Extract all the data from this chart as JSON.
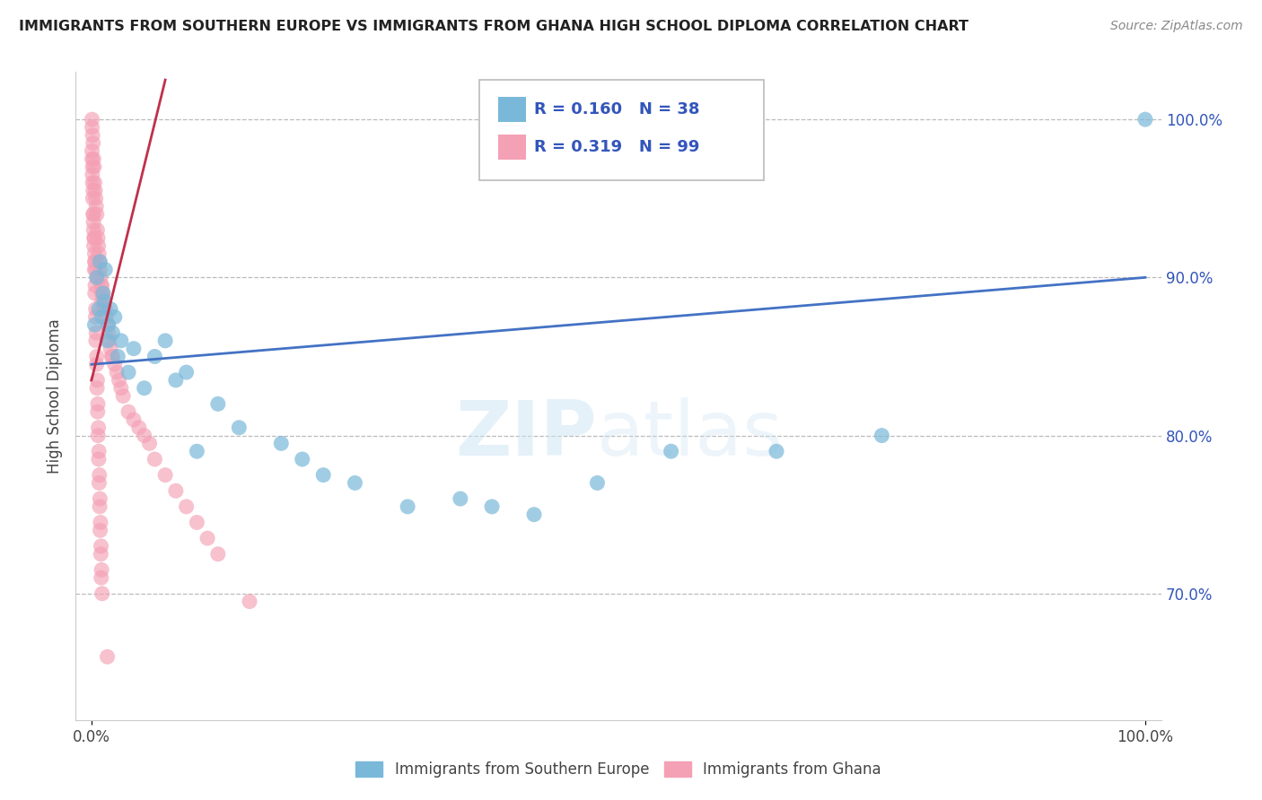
{
  "title": "IMMIGRANTS FROM SOUTHERN EUROPE VS IMMIGRANTS FROM GHANA HIGH SCHOOL DIPLOMA CORRELATION CHART",
  "source": "Source: ZipAtlas.com",
  "ylabel": "High School Diploma",
  "legend_blue_r": "R = 0.160",
  "legend_blue_n": "N = 38",
  "legend_pink_r": "R = 0.319",
  "legend_pink_n": "N = 99",
  "legend_label_blue": "Immigrants from Southern Europe",
  "legend_label_pink": "Immigrants from Ghana",
  "watermark_zip": "ZIP",
  "watermark_atlas": "atlas",
  "blue_color": "#7ab8d9",
  "pink_color": "#f4a0b5",
  "blue_line_color": "#4472c4",
  "pink_line_color": "#c0304a",
  "title_color": "#222222",
  "legend_text_color": "#3355bb",
  "axis_color": "#444444",
  "background_color": "#ffffff",
  "grid_color": "#bbbbbb",
  "blue_scatter_x": [
    0.3,
    0.5,
    0.7,
    0.8,
    1.0,
    1.1,
    1.2,
    1.3,
    1.5,
    1.6,
    1.8,
    2.0,
    2.2,
    2.5,
    2.8,
    3.5,
    4.0,
    5.0,
    6.0,
    7.0,
    8.0,
    9.0,
    10.0,
    12.0,
    14.0,
    18.0,
    20.0,
    22.0,
    25.0,
    30.0,
    35.0,
    38.0,
    42.0,
    48.0,
    55.0,
    65.0,
    75.0,
    100.0
  ],
  "blue_scatter_y": [
    87.0,
    90.0,
    88.0,
    91.0,
    87.5,
    89.0,
    88.5,
    90.5,
    86.0,
    87.0,
    88.0,
    86.5,
    87.5,
    85.0,
    86.0,
    84.0,
    85.5,
    83.0,
    85.0,
    86.0,
    83.5,
    84.0,
    79.0,
    82.0,
    80.5,
    79.5,
    78.5,
    77.5,
    77.0,
    75.5,
    76.0,
    75.5,
    75.0,
    77.0,
    79.0,
    79.0,
    80.0,
    100.0
  ],
  "blue_line_x0": 0.0,
  "blue_line_x1": 100.0,
  "blue_line_y0": 84.5,
  "blue_line_y1": 90.0,
  "pink_line_x0": 0.0,
  "pink_line_x1": 7.0,
  "pink_line_y0": 83.5,
  "pink_line_y1": 102.5,
  "pink_scatter_x": [
    0.05,
    0.05,
    0.1,
    0.1,
    0.15,
    0.15,
    0.2,
    0.2,
    0.25,
    0.25,
    0.3,
    0.3,
    0.35,
    0.35,
    0.4,
    0.4,
    0.45,
    0.5,
    0.5,
    0.55,
    0.6,
    0.65,
    0.7,
    0.75,
    0.8,
    0.85,
    0.9,
    0.95,
    1.0,
    1.0,
    1.1,
    1.1,
    1.2,
    1.3,
    1.4,
    1.5,
    1.6,
    1.7,
    1.8,
    1.9,
    2.0,
    2.2,
    2.4,
    2.6,
    2.8,
    3.0,
    3.5,
    4.0,
    4.5,
    5.0,
    5.5,
    6.0,
    7.0,
    8.0,
    9.0,
    10.0,
    11.0,
    12.0,
    15.0,
    0.05,
    0.08,
    0.12,
    0.18,
    0.22,
    0.28,
    0.32,
    0.38,
    0.42,
    0.48,
    0.52,
    0.58,
    0.62,
    0.68,
    0.72,
    0.78,
    0.82,
    0.88,
    0.92,
    0.05,
    0.1,
    0.15,
    0.2,
    0.25,
    0.3,
    0.35,
    0.4,
    0.45,
    0.5,
    0.55,
    0.6,
    0.65,
    0.7,
    0.75,
    0.8,
    0.85,
    0.9,
    0.95,
    1.0,
    1.5
  ],
  "pink_scatter_y": [
    100.0,
    97.5,
    99.0,
    96.0,
    98.5,
    94.0,
    97.5,
    93.0,
    97.0,
    92.5,
    96.0,
    91.5,
    95.5,
    91.0,
    95.0,
    90.5,
    94.5,
    94.0,
    90.0,
    93.0,
    92.5,
    92.0,
    91.5,
    91.0,
    90.5,
    90.0,
    89.5,
    89.0,
    89.5,
    88.5,
    89.0,
    88.0,
    88.5,
    88.0,
    87.5,
    87.0,
    86.5,
    86.0,
    85.5,
    85.0,
    85.0,
    84.5,
    84.0,
    83.5,
    83.0,
    82.5,
    81.5,
    81.0,
    80.5,
    80.0,
    79.5,
    78.5,
    77.5,
    76.5,
    75.5,
    74.5,
    73.5,
    72.5,
    69.5,
    98.0,
    96.5,
    95.0,
    93.5,
    92.0,
    90.5,
    89.0,
    87.5,
    86.0,
    84.5,
    83.0,
    81.5,
    80.0,
    78.5,
    77.0,
    75.5,
    74.0,
    72.5,
    71.0,
    99.5,
    97.0,
    95.5,
    94.0,
    92.5,
    91.0,
    89.5,
    88.0,
    86.5,
    85.0,
    83.5,
    82.0,
    80.5,
    79.0,
    77.5,
    76.0,
    74.5,
    73.0,
    71.5,
    70.0,
    66.0
  ],
  "xmin": 0.0,
  "xmax": 100.0,
  "ymin": 62.0,
  "ymax": 103.0
}
